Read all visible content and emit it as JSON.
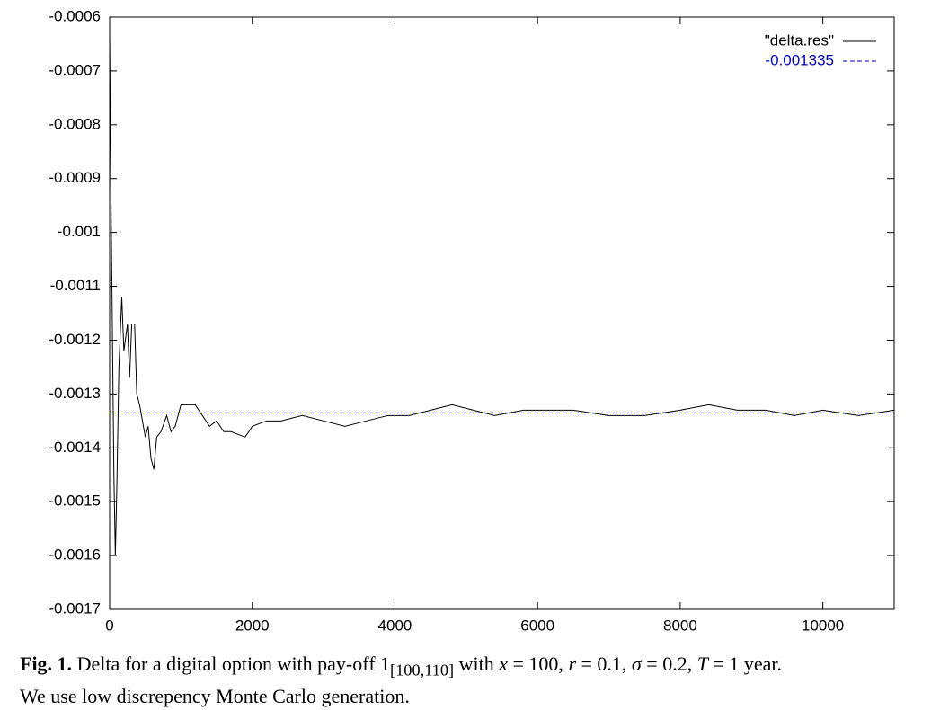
{
  "chart_data": {
    "type": "line",
    "xlim": [
      0,
      11000
    ],
    "xticks": [
      0,
      2000,
      4000,
      6000,
      8000,
      10000
    ],
    "ylim": [
      -0.0017,
      -0.0006
    ],
    "yticks": [
      -0.0017,
      -0.0016,
      -0.0015,
      -0.0014,
      -0.0013,
      -0.0012,
      -0.0011,
      -0.001,
      -0.0009,
      -0.0008,
      -0.0007,
      -0.0006
    ],
    "legend": "upper right",
    "series": [
      {
        "name": "\"delta.res\"",
        "color": "#000000",
        "line_style": "solid",
        "x": [
          0,
          20,
          40,
          60,
          80,
          100,
          130,
          170,
          200,
          250,
          280,
          310,
          350,
          380,
          420,
          460,
          500,
          540,
          580,
          620,
          660,
          720,
          800,
          860,
          920,
          1000,
          1100,
          1200,
          1300,
          1400,
          1500,
          1600,
          1700,
          1900,
          2000,
          2200,
          2400,
          2700,
          3000,
          3300,
          3600,
          3900,
          4200,
          4500,
          4800,
          5100,
          5400,
          5800,
          6100,
          6500,
          7000,
          7500,
          8000,
          8400,
          8800,
          9200,
          9600,
          10000,
          10500,
          11000
        ],
        "values": [
          -0.00063,
          -0.00095,
          -0.0012,
          -0.00145,
          -0.0016,
          -0.00148,
          -0.00125,
          -0.00112,
          -0.00122,
          -0.00117,
          -0.00127,
          -0.00117,
          -0.00117,
          -0.0013,
          -0.00132,
          -0.00135,
          -0.00138,
          -0.00136,
          -0.00142,
          -0.00144,
          -0.00138,
          -0.00137,
          -0.00134,
          -0.00137,
          -0.00136,
          -0.00132,
          -0.00132,
          -0.00132,
          -0.00134,
          -0.00136,
          -0.00135,
          -0.00137,
          -0.00137,
          -0.00138,
          -0.00136,
          -0.00135,
          -0.00135,
          -0.00134,
          -0.00135,
          -0.00136,
          -0.00135,
          -0.00134,
          -0.00134,
          -0.00133,
          -0.00132,
          -0.00133,
          -0.00134,
          -0.00133,
          -0.00133,
          -0.00133,
          -0.00134,
          -0.00134,
          -0.00133,
          -0.00132,
          -0.00133,
          -0.00133,
          -0.00134,
          -0.00133,
          -0.00134,
          -0.00133
        ]
      },
      {
        "name": "-0.001335",
        "color": "#0000cc",
        "line_style": "dashed",
        "x": [
          0,
          11000
        ],
        "values": [
          -0.001335,
          -0.001335
        ]
      }
    ]
  },
  "caption": {
    "label": "Fig. 1.",
    "parts": [
      "Delta for a digital option with pay-off 1",
      "[100,110]",
      " with ",
      "x",
      " = 100, ",
      "r",
      " = 0.1, ",
      "σ",
      " = 0.2, ",
      "T",
      " = 1 year."
    ],
    "line2": "We use low discrepency Monte Carlo generation."
  }
}
